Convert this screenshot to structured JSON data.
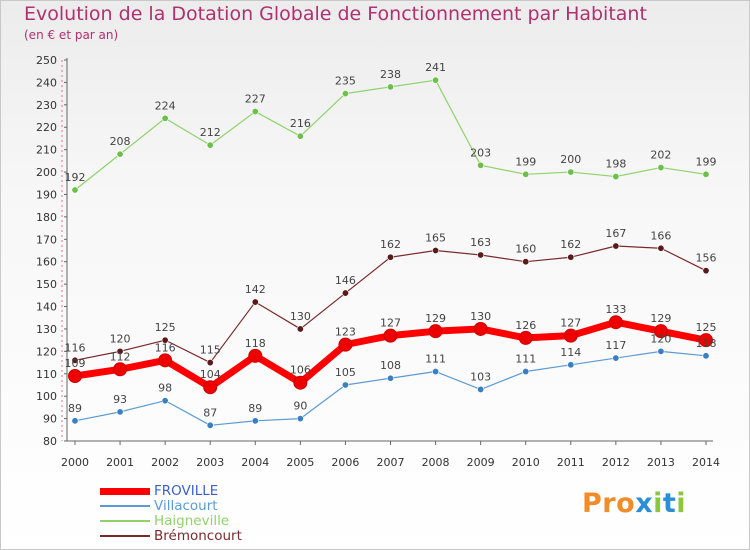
{
  "title": "Evolution de la Dotation Globale de Fonctionnement par Habitant",
  "subtitle": "(en € et par an)",
  "logo": {
    "letters": [
      "P",
      "r",
      "o",
      "x",
      "i",
      "t",
      "i"
    ],
    "colors": [
      "#f28c28",
      "#f28c28",
      "#f28c28",
      "#2a8fd6",
      "#8cc63f",
      "#2a8fd6",
      "#8cc63f"
    ]
  },
  "chart_data": {
    "type": "line",
    "title": "Evolution de la Dotation Globale de Fonctionnement par Habitant",
    "subtitle": "(en € et par an)",
    "xlabel": "",
    "ylabel": "",
    "ylim": [
      80,
      250
    ],
    "yticks": [
      80,
      90,
      100,
      110,
      120,
      130,
      140,
      150,
      160,
      170,
      180,
      190,
      200,
      210,
      220,
      230,
      240,
      250
    ],
    "grid": false,
    "legend_position": "bottom-left",
    "x": [
      "2000",
      "2001",
      "2002",
      "2003",
      "2004",
      "2005",
      "2006",
      "2007",
      "2008",
      "2009",
      "2010",
      "2011",
      "2012",
      "2013",
      "2014"
    ],
    "series": [
      {
        "name": "Haigneville",
        "color": "#8ed36a",
        "marker": "#6cc04a",
        "width": 1.2,
        "values": [
          192,
          208,
          224,
          212,
          227,
          216,
          235,
          238,
          241,
          203,
          199,
          200,
          198,
          202,
          199
        ]
      },
      {
        "name": "Brémoncourt",
        "color": "#7a2a2a",
        "marker": "#5a1a1a",
        "width": 1.2,
        "values": [
          116,
          120,
          125,
          115,
          142,
          130,
          146,
          162,
          165,
          163,
          160,
          162,
          167,
          166,
          156
        ]
      },
      {
        "name": "Villacourt",
        "color": "#5b9bd5",
        "marker": "#3a7fc4",
        "width": 1.2,
        "values": [
          89,
          93,
          98,
          87,
          89,
          90,
          105,
          108,
          111,
          103,
          111,
          114,
          117,
          120,
          118
        ]
      },
      {
        "name": "FROVILLE",
        "color": "#ff0000",
        "marker": "#ee0000",
        "width": 7,
        "values": [
          109,
          112,
          116,
          104,
          118,
          106,
          123,
          127,
          129,
          130,
          126,
          127,
          133,
          129,
          125
        ]
      }
    ],
    "legend_order": [
      "FROVILLE",
      "Villacourt",
      "Haigneville",
      "Brémoncourt"
    ]
  }
}
